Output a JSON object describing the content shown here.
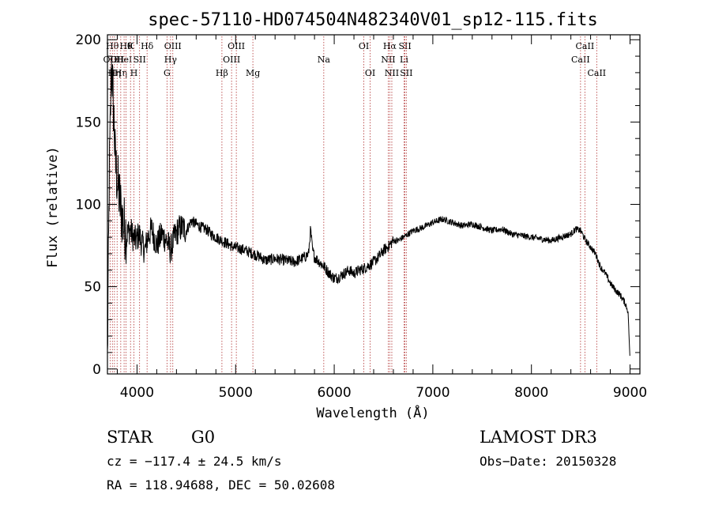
{
  "chart_data": {
    "type": "line",
    "title": "spec-57110-HD074504N482340V01_sp12-115.fits",
    "xlabel": "Wavelength (Å)",
    "ylabel": "Flux (relative)",
    "xlim": [
      3700,
      9100
    ],
    "ylim": [
      -3,
      203
    ],
    "x_ticks": [
      4000,
      5000,
      6000,
      7000,
      8000,
      9000
    ],
    "y_ticks": [
      0,
      50,
      100,
      150,
      200
    ],
    "series": [
      {
        "name": "flux",
        "x": [
          3700,
          3710,
          3720,
          3730,
          3740,
          3750,
          3760,
          3770,
          3780,
          3800,
          3830,
          3860,
          3900,
          3930,
          3960,
          3990,
          4020,
          4050,
          4080,
          4110,
          4150,
          4200,
          4250,
          4300,
          4340,
          4380,
          4420,
          4460,
          4500,
          4550,
          4600,
          4650,
          4700,
          4750,
          4800,
          4860,
          4920,
          4980,
          5050,
          5100,
          5180,
          5250,
          5300,
          5400,
          5500,
          5600,
          5700,
          5740,
          5760,
          5780,
          5800,
          5850,
          5900,
          5950,
          6000,
          6050,
          6100,
          6150,
          6200,
          6250,
          6300,
          6350,
          6400,
          6450,
          6500,
          6560,
          6600,
          6650,
          6700,
          6750,
          6800,
          6900,
          7000,
          7100,
          7200,
          7300,
          7400,
          7500,
          7600,
          7700,
          7800,
          7900,
          8000,
          8100,
          8200,
          8300,
          8400,
          8450,
          8500,
          8550,
          8600,
          8650,
          8700,
          8750,
          8800,
          8850,
          8900,
          8950,
          8980,
          9000
        ],
        "values": [
          5,
          65,
          120,
          150,
          185,
          175,
          160,
          145,
          125,
          115,
          100,
          88,
          82,
          85,
          80,
          78,
          82,
          76,
          72,
          80,
          85,
          75,
          82,
          78,
          72,
          80,
          85,
          86,
          84,
          90,
          88,
          86,
          85,
          82,
          80,
          78,
          76,
          74,
          73,
          72,
          70,
          68,
          66,
          67,
          66,
          65,
          68,
          70,
          85,
          72,
          68,
          65,
          62,
          58,
          55,
          56,
          58,
          60,
          58,
          60,
          61,
          63,
          65,
          68,
          72,
          75,
          78,
          78,
          80,
          82,
          84,
          86,
          89,
          91,
          89,
          87,
          88,
          86,
          84,
          85,
          82,
          81,
          80,
          79,
          78,
          80,
          82,
          85,
          84,
          78,
          74,
          70,
          62,
          58,
          52,
          48,
          45,
          40,
          35,
          5
        ]
      }
    ],
    "emission_lines": [
      {
        "wave": 3727,
        "label": "OII",
        "row": 2
      },
      {
        "wave": 3750,
        "label": "Hθ",
        "row": 1
      },
      {
        "wave": 3771,
        "label": "Hη",
        "row": 3
      },
      {
        "wave": 3798,
        "label": "OII",
        "row": 2
      },
      {
        "wave": 3835,
        "label": "Hη",
        "row": 3
      },
      {
        "wave": 3869,
        "label": "HeI",
        "row": 2
      },
      {
        "wave": 3889,
        "label": "Hθ",
        "row": 1
      },
      {
        "wave": 3934,
        "label": "K",
        "row": 1
      },
      {
        "wave": 3969,
        "label": "H",
        "row": 3
      },
      {
        "wave": 4026,
        "label": "SII",
        "row": 2
      },
      {
        "wave": 4102,
        "label": "Hδ",
        "row": 1
      },
      {
        "wave": 4304,
        "label": "G",
        "row": 3
      },
      {
        "wave": 4340,
        "label": "Hγ",
        "row": 2
      },
      {
        "wave": 4363,
        "label": "OIII",
        "row": 1
      },
      {
        "wave": 4861,
        "label": "Hβ",
        "row": 3
      },
      {
        "wave": 4959,
        "label": "OIII",
        "row": 2
      },
      {
        "wave": 5007,
        "label": "OIII",
        "row": 1
      },
      {
        "wave": 5175,
        "label": "Mg",
        "row": 3
      },
      {
        "wave": 5894,
        "label": "Na",
        "row": 2
      },
      {
        "wave": 6300,
        "label": "OI",
        "row": 1
      },
      {
        "wave": 6364,
        "label": "OI",
        "row": 3
      },
      {
        "wave": 6548,
        "label": "NII",
        "row": 2
      },
      {
        "wave": 6563,
        "label": "Hα",
        "row": 1
      },
      {
        "wave": 6584,
        "label": "NII",
        "row": 3
      },
      {
        "wave": 6708,
        "label": "Li",
        "row": 2
      },
      {
        "wave": 6717,
        "label": "SII",
        "row": 1
      },
      {
        "wave": 6731,
        "label": "SII",
        "row": 3
      },
      {
        "wave": 8498,
        "label": "CaII",
        "row": 2
      },
      {
        "wave": 8542,
        "label": "CaII",
        "row": 1
      },
      {
        "wave": 8662,
        "label": "CaII",
        "row": 3
      }
    ]
  },
  "info": {
    "class_label": "STAR",
    "subclass": "G0",
    "survey": "LAMOST DR3",
    "cz": "cz = −117.4 ± 24.5 km/s",
    "obs_date": "Obs−Date: 20150328",
    "radec": "RA = 118.94688, DEC =  50.02608"
  }
}
